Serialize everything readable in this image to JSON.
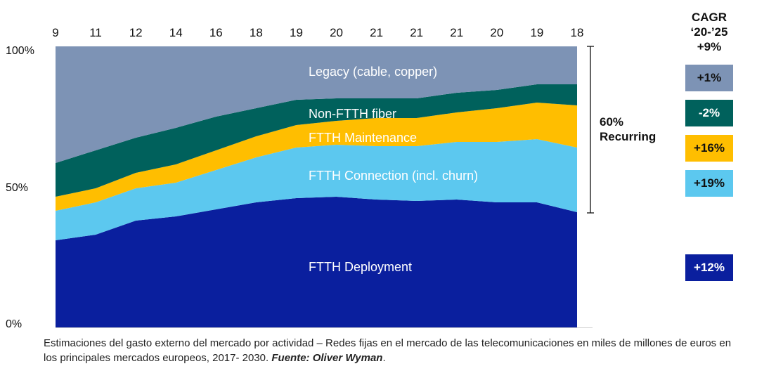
{
  "chart_data": {
    "type": "area",
    "stacked": true,
    "normalized": true,
    "x_top_labels": [
      "9",
      "11",
      "12",
      "14",
      "16",
      "18",
      "19",
      "20",
      "21",
      "21",
      "21",
      "20",
      "19",
      "18"
    ],
    "y_ticks": [
      "100%",
      "50%",
      "0%"
    ],
    "ylim": [
      0,
      100
    ],
    "series": [
      {
        "name": "FTTH Deployment",
        "color": "#0a1f9e",
        "values": [
          31,
          33,
          38,
          39.5,
          42,
          44.5,
          46,
          46.5,
          45.5,
          45,
          45.5,
          44.5,
          44.5,
          41
        ]
      },
      {
        "name": "FTTH Connection (incl. churn)",
        "color": "#5cc8ef",
        "values": [
          10.5,
          11.5,
          11.5,
          12,
          14,
          16,
          18,
          18.5,
          19,
          19.5,
          20.5,
          21.5,
          22.5,
          23
        ]
      },
      {
        "name": "FTTH Maintenance",
        "color": "#ffbe00",
        "values": [
          5,
          5,
          5.5,
          6.5,
          7,
          7.5,
          8,
          8.5,
          10,
          10,
          10.5,
          12,
          13,
          15
        ]
      },
      {
        "name": "Non-FTTH fiber",
        "color": "#00615c",
        "values": [
          12,
          13.5,
          12.5,
          13,
          12,
          10,
          9,
          8,
          7,
          7,
          7,
          6.5,
          6.5,
          7.5
        ]
      },
      {
        "name": "Legacy (cable, copper)",
        "color": "#7d93b5",
        "values": [
          41.5,
          37,
          32.5,
          29,
          25,
          22,
          19,
          18.5,
          18.5,
          18.5,
          16.5,
          15.5,
          13.5,
          13.5
        ]
      }
    ],
    "bracket_label": [
      "60%",
      "Recurring"
    ],
    "cagr": {
      "title": [
        "CAGR",
        "‘20-’25"
      ],
      "total": "+9%",
      "items": [
        {
          "value": "+1%",
          "color": "#7d93b5",
          "text_color": "#111111"
        },
        {
          "value": "-2%",
          "color": "#00615c",
          "text_color": "#ffffff"
        },
        {
          "value": "+16%",
          "color": "#ffbe00",
          "text_color": "#111111"
        },
        {
          "value": "+19%",
          "color": "#5cc8ef",
          "text_color": "#111111"
        },
        {
          "value": "+12%",
          "color": "#0a1f9e",
          "text_color": "#ffffff"
        }
      ]
    }
  },
  "caption": {
    "text": "Estimaciones del gasto externo del mercado por actividad – Redes fijas en el mercado de las telecomunicaciones en miles de millones de euros en los principales mercados europeos, 2017- 2030.",
    "source": "Fuente: Oliver Wyman",
    "end": "."
  }
}
